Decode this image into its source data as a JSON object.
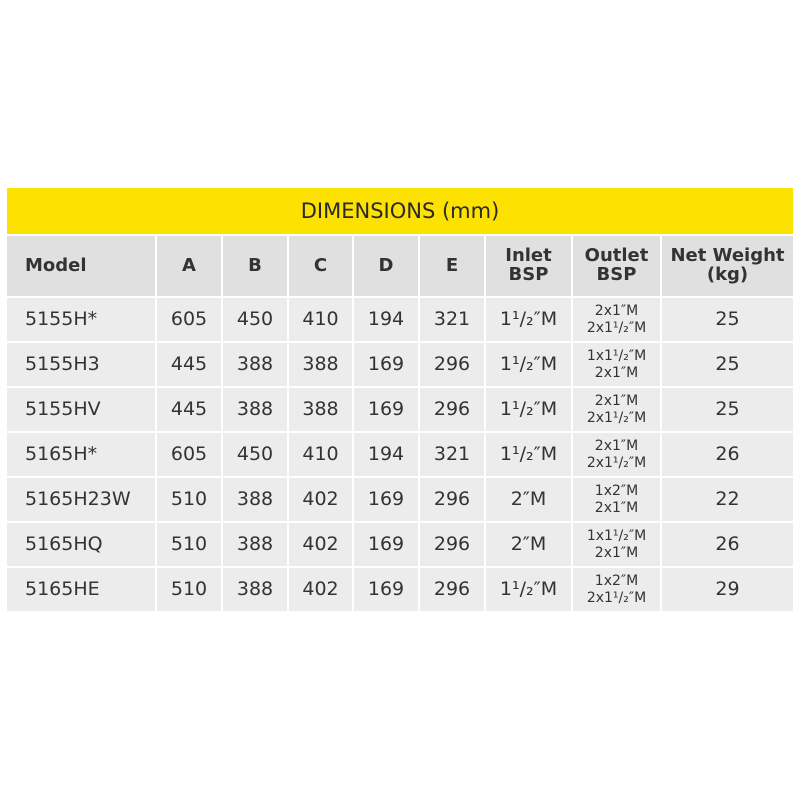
{
  "table": {
    "title": "DIMENSIONS (mm)",
    "header": [
      "Model",
      "A",
      "B",
      "C",
      "D",
      "E",
      [
        "Inlet",
        "BSP"
      ],
      [
        "Outlet",
        "BSP"
      ],
      [
        "Net Weight",
        "(kg)"
      ]
    ],
    "rows": [
      [
        "5155H*",
        605,
        450,
        410,
        194,
        321,
        "1¹/₂″M",
        [
          "2x1″M",
          "2x1¹/₂″M"
        ],
        25
      ],
      [
        "5155H3",
        445,
        388,
        388,
        169,
        296,
        "1¹/₂″M",
        [
          "1x1¹/₂″M",
          "2x1″M"
        ],
        25
      ],
      [
        "5155HV",
        445,
        388,
        388,
        169,
        296,
        "1¹/₂″M",
        [
          "2x1″M",
          "2x1¹/₂″M"
        ],
        25
      ],
      [
        "5165H*",
        605,
        450,
        410,
        194,
        321,
        "1¹/₂″M",
        [
          "2x1″M",
          "2x1¹/₂″M"
        ],
        26
      ],
      [
        "5165H23W",
        510,
        388,
        402,
        169,
        296,
        "2″M",
        [
          "1x2″M",
          "2x1″M"
        ],
        22
      ],
      [
        "5165HQ",
        510,
        388,
        402,
        169,
        296,
        "2″M",
        [
          "1x1¹/₂″M",
          "2x1″M"
        ],
        26
      ],
      [
        "5165HE",
        510,
        388,
        402,
        169,
        296,
        "1¹/₂″M",
        [
          "1x2″M",
          "2x1¹/₂″M"
        ],
        29
      ]
    ]
  }
}
